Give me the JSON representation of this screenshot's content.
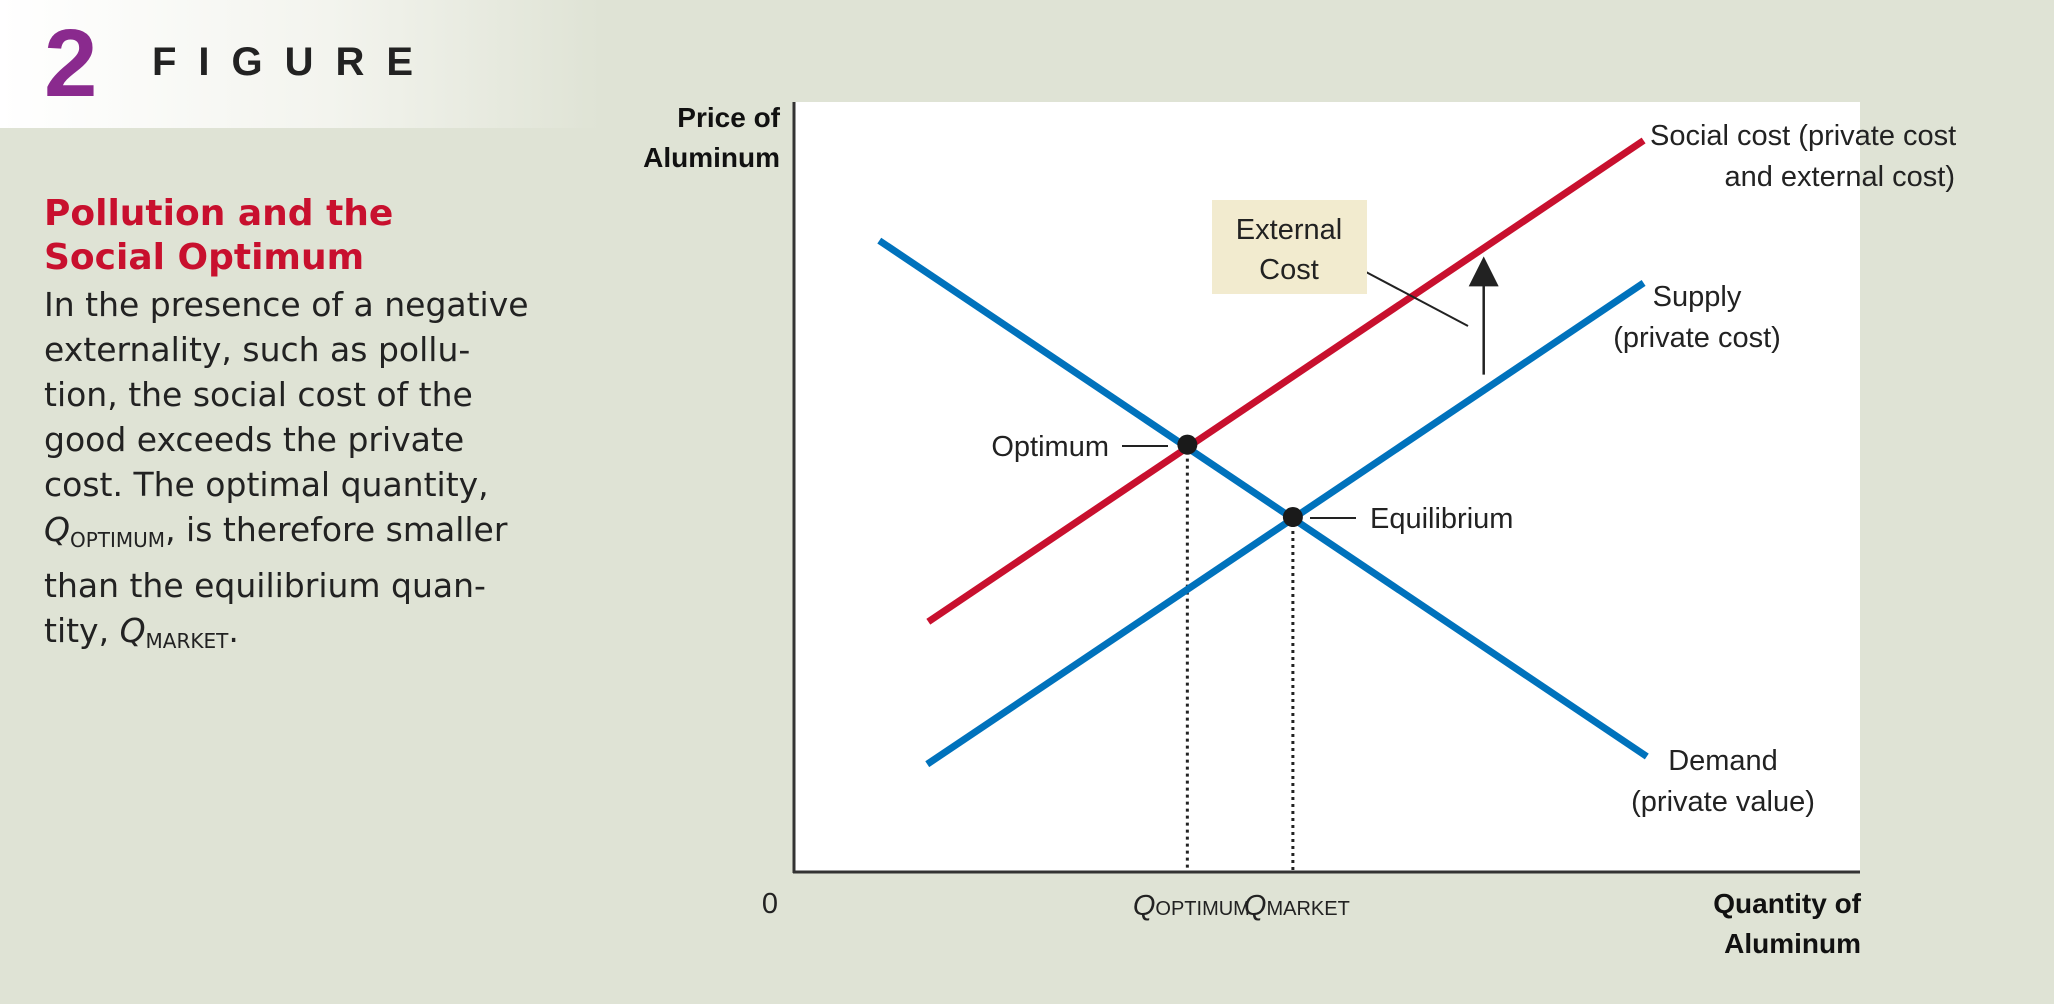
{
  "figure": {
    "number": "2",
    "word": "FIGURE"
  },
  "caption": {
    "title_lines": [
      "Pollution and the",
      "Social Optimum"
    ],
    "body_lines": [
      "In the presence of a negative",
      "externality, such as pollu-",
      "tion, the social cost of the",
      "good exceeds the private",
      "cost. The optimal quantity,"
    ],
    "line6_q": "Q",
    "line6_sub": "OPTIMUM",
    "line6_rest": ", is therefore smaller",
    "line7": "than the equilibrium quan-",
    "line8_pre": "tity, ",
    "line8_q": "Q",
    "line8_sub": "MARKET",
    "line8_post": "."
  },
  "chart_data": {
    "type": "line",
    "title": "",
    "ylabel_lines": [
      "Price of",
      "Aluminum"
    ],
    "xlabel_lines": [
      "Quantity of",
      "Aluminum"
    ],
    "origin_label": "0",
    "xlim": [
      0,
      100
    ],
    "ylim": [
      0,
      100
    ],
    "grid": false,
    "series": [
      {
        "name": "Social cost (private cost and external cost)",
        "label_lines": [
          "Social cost (private cost",
          "and external cost)"
        ],
        "color": "#c8102e",
        "x": [
          12.6,
          79.7
        ],
        "y": [
          32.5,
          95.0
        ]
      },
      {
        "name": "Supply (private cost)",
        "label_lines": [
          "Supply",
          "(private cost)"
        ],
        "color": "#0072bc",
        "x": [
          12.5,
          79.7
        ],
        "y": [
          14.0,
          76.5
        ]
      },
      {
        "name": "Demand (private value)",
        "label_lines": [
          "Demand",
          "(private value)"
        ],
        "color": "#0072bc",
        "x": [
          8.0,
          80.0
        ],
        "y": [
          82.0,
          15.0
        ]
      }
    ],
    "points": [
      {
        "name": "Optimum",
        "label": "Optimum",
        "x": 36.9,
        "y": 55.5,
        "tick_label": "Q",
        "tick_sub": "OPTIMUM"
      },
      {
        "name": "Equilibrium",
        "label": "Equilibrium",
        "x": 46.8,
        "y": 46.1,
        "tick_label": "Q",
        "tick_sub": "MARKET"
      }
    ],
    "annotation": {
      "label_lines": [
        "External",
        "Cost"
      ],
      "box_color": "#f2ebcf",
      "arrow_x": 64.7,
      "arrow_y_from": 64.6,
      "arrow_y_to": 78.0
    }
  }
}
